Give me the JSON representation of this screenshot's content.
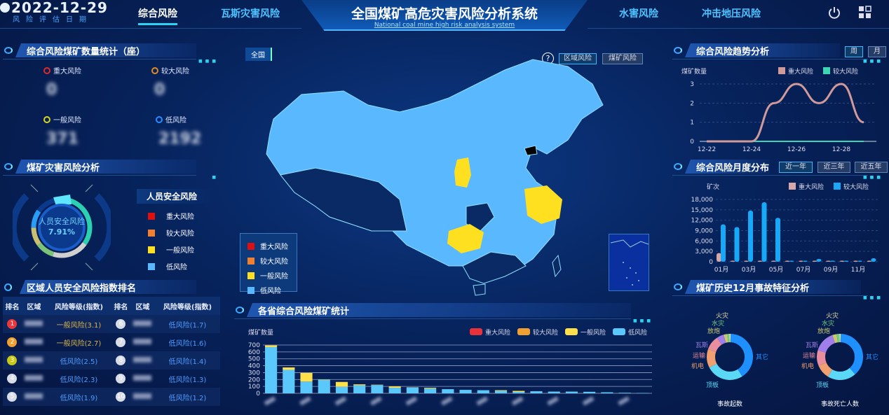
{
  "header": {
    "date": "2022-12-29",
    "date_caption": "风险评估日期",
    "title": "全国煤矿高危灾害风险分析系统",
    "subtitle": "National coal mine high risk analysis system",
    "nav_left": [
      {
        "label": "综合风险",
        "active": true
      },
      {
        "label": "瓦斯灾害风险",
        "active": false
      }
    ],
    "nav_right": [
      {
        "label": "水害风险"
      },
      {
        "label": "冲击地压风险"
      }
    ],
    "icons": [
      "power-icon",
      "grid-icon"
    ]
  },
  "colors": {
    "major": "#e02828",
    "large": "#f08a28",
    "general": "#ffe12a",
    "low": "#5ab8ff",
    "accent": "#2bd4f0"
  },
  "count_panel": {
    "title": "综合风险煤矿数量统计（座）",
    "items": [
      {
        "label": "重大风险",
        "value": "0",
        "color": "#e02828"
      },
      {
        "label": "较大风险",
        "value": "0",
        "color": "#e08a20"
      },
      {
        "label": "一般风险",
        "value": "371",
        "color": "#d6d620"
      },
      {
        "label": "低风险",
        "value": "2192",
        "color": "#2a8cff"
      }
    ]
  },
  "disaster_panel": {
    "title": "煤矿灾害风险分析",
    "gauge_label": "人员安全风险",
    "gauge_value": "7.91%",
    "legend_title": "人员安全风险",
    "legend": [
      {
        "label": "重大风险",
        "color": "#e01010"
      },
      {
        "label": "较大风险",
        "color": "#f08030"
      },
      {
        "label": "一般风险",
        "color": "#ffe020"
      },
      {
        "label": "低风险",
        "color": "#5ab8ff"
      }
    ]
  },
  "ranking": {
    "title": "区域人员安全风险指数排名",
    "headers": [
      "排名",
      "区域",
      "风险等级(指数)",
      "排名",
      "区域",
      "风险等级(指数)"
    ],
    "rows": [
      [
        {
          "rank": "1",
          "color": "#e8383d",
          "level": "一般风险(3.1)",
          "type": "general"
        },
        {
          "rank": "6",
          "color": "#d8dce6",
          "level": "低风险(1.7)",
          "type": "low"
        }
      ],
      [
        {
          "rank": "2",
          "color": "#f0a030",
          "level": "一般风险(2.7)",
          "type": "general"
        },
        {
          "rank": "7",
          "color": "#d8dce6",
          "level": "低风险(1.6)",
          "type": "low"
        }
      ],
      [
        {
          "rank": "3",
          "color": "#c8c818",
          "level": "低风险(2.5)",
          "type": "low"
        },
        {
          "rank": "8",
          "color": "#d8dce6",
          "level": "低风险(1.4)",
          "type": "low"
        }
      ],
      [
        {
          "rank": "4",
          "color": "#d8dce6",
          "level": "低风险(2.3)",
          "type": "low"
        },
        {
          "rank": "9",
          "color": "#d8dce6",
          "level": "低风险(1.3)",
          "type": "low"
        }
      ],
      [
        {
          "rank": "5",
          "color": "#d8dce6",
          "level": "低风险(1.9)",
          "type": "low"
        },
        {
          "rank": "10",
          "color": "#d8dce6",
          "level": "低风险(1.2)",
          "type": "low"
        }
      ]
    ]
  },
  "map": {
    "breadcrumb": "全国",
    "help": "?",
    "buttons": [
      {
        "label": "区域风险",
        "active": true
      },
      {
        "label": "煤矿风险",
        "active": false
      }
    ],
    "legend": [
      {
        "label": "重大风险",
        "color": "#e01010"
      },
      {
        "label": "较大风险",
        "color": "#f08030"
      },
      {
        "label": "一般风险",
        "color": "#ffe020"
      },
      {
        "label": "低风险",
        "color": "#5ab8ff"
      }
    ]
  },
  "chart_data": [
    {
      "id": "province",
      "type": "bar",
      "title": "各省综合风险煤矿统计",
      "ylabel": "煤矿数量",
      "ylim": [
        0,
        700
      ],
      "yticks": [
        0,
        100,
        200,
        300,
        400,
        500,
        600,
        700
      ],
      "stacked": true,
      "legend_position": "top-right",
      "series": [
        {
          "name": "重大风险",
          "color": "#e8323a",
          "values": [
            0,
            0,
            0,
            0,
            0,
            0,
            0,
            0,
            0,
            0,
            0,
            0,
            0,
            0,
            0,
            0,
            0,
            0,
            0,
            0,
            0,
            0
          ]
        },
        {
          "name": "较大风险",
          "color": "#f0a030",
          "values": [
            0,
            0,
            0,
            0,
            0,
            0,
            0,
            0,
            0,
            0,
            0,
            0,
            0,
            0,
            0,
            0,
            0,
            0,
            0,
            0,
            0,
            0
          ]
        },
        {
          "name": "一般风险",
          "color": "#ffe04a",
          "values": [
            25,
            35,
            125,
            5,
            70,
            15,
            5,
            20,
            3,
            10,
            0,
            0,
            0,
            10,
            15,
            0,
            0,
            0,
            0,
            0,
            0,
            0
          ]
        },
        {
          "name": "低风险",
          "color": "#5ac8fa",
          "values": [
            670,
            340,
            170,
            195,
            95,
            115,
            120,
            80,
            85,
            70,
            60,
            50,
            45,
            35,
            20,
            30,
            25,
            25,
            22,
            15,
            8,
            5
          ]
        }
      ]
    },
    {
      "id": "trend",
      "type": "line",
      "title": "综合风险趋势分析",
      "ylabel": "煤矿数量",
      "ylim": [
        0,
        3
      ],
      "yticks": [
        0,
        1,
        2,
        3
      ],
      "x": [
        "12-22",
        "12-23",
        "12-24",
        "12-25",
        "12-26",
        "12-27",
        "12-28",
        "12-29"
      ],
      "xticks": [
        "12-22",
        "12-24",
        "12-26",
        "12-28"
      ],
      "buttons": [
        {
          "label": "周",
          "active": true
        },
        {
          "label": "月",
          "active": false
        }
      ],
      "series": [
        {
          "name": "重大风险",
          "color": "#d09a9a",
          "values": [
            0,
            0,
            0,
            2,
            3,
            2,
            3,
            1
          ]
        },
        {
          "name": "较大风险",
          "color": "#3cd6b4",
          "values": [
            0,
            0,
            0,
            0,
            0,
            0,
            0,
            0
          ]
        }
      ]
    },
    {
      "id": "monthly",
      "type": "bar",
      "title": "综合风险月度分布",
      "ylabel": "矿次",
      "ylim": [
        0,
        18000
      ],
      "yticks": [
        "0",
        "3,000",
        "6,000",
        "9,000",
        "12,000",
        "15,000",
        "18,000"
      ],
      "categories": [
        "01月",
        "02月",
        "03月",
        "04月",
        "05月",
        "06月",
        "07月",
        "08月",
        "09月",
        "10月",
        "11月",
        "12月"
      ],
      "xticks": [
        "01月",
        "03月",
        "05月",
        "07月",
        "09月",
        "11月"
      ],
      "buttons": [
        {
          "label": "近一年",
          "active": true
        },
        {
          "label": "近三年",
          "active": false
        },
        {
          "label": "近五年",
          "active": false
        }
      ],
      "series": [
        {
          "name": "重大风险",
          "color": "#d8a8a8",
          "values": [
            2500,
            0,
            0,
            200,
            0,
            0,
            0,
            0,
            0,
            0,
            0,
            0
          ]
        },
        {
          "name": "较大风险",
          "color": "#18a8f8",
          "values": [
            10800,
            10000,
            14800,
            17200,
            12700,
            0,
            200,
            800,
            200,
            0,
            0,
            1000
          ]
        }
      ]
    },
    {
      "id": "accidents",
      "type": "pie",
      "title": "煤矿历史12月事故特征分析",
      "charts": [
        {
          "caption": "事故起数",
          "slices": [
            {
              "label": "其它",
              "value": 40,
              "color": "#1e90ff"
            },
            {
              "label": "顶板",
              "value": 26,
              "color": "#5ad8f5"
            },
            {
              "label": "机电",
              "value": 13,
              "color": "#f0a070"
            },
            {
              "label": "运输",
              "value": 10,
              "color": "#e88e9e"
            },
            {
              "label": "瓦斯",
              "value": 5,
              "color": "#a080e8"
            },
            {
              "label": "放炮",
              "value": 2.5,
              "color": "#c8c870"
            },
            {
              "label": "水灾",
              "value": 1.5,
              "color": "#70d080"
            },
            {
              "label": "火灾",
              "value": 1,
              "color": "#e8e0a0"
            }
          ]
        },
        {
          "caption": "事故死亡人数",
          "slices": [
            {
              "label": "其它",
              "value": 38,
              "color": "#1e90ff"
            },
            {
              "label": "顶板",
              "value": 20,
              "color": "#5ad8f5"
            },
            {
              "label": "机电",
              "value": 10,
              "color": "#f0a070"
            },
            {
              "label": "运输",
              "value": 11,
              "color": "#e88e9e"
            },
            {
              "label": "瓦斯",
              "value": 15,
              "color": "#a080e8"
            },
            {
              "label": "放炮",
              "value": 3,
              "color": "#c8c870"
            },
            {
              "label": "水灾",
              "value": 2,
              "color": "#70d080"
            },
            {
              "label": "火灾",
              "value": 1,
              "color": "#e8e0a0"
            }
          ]
        }
      ]
    }
  ]
}
